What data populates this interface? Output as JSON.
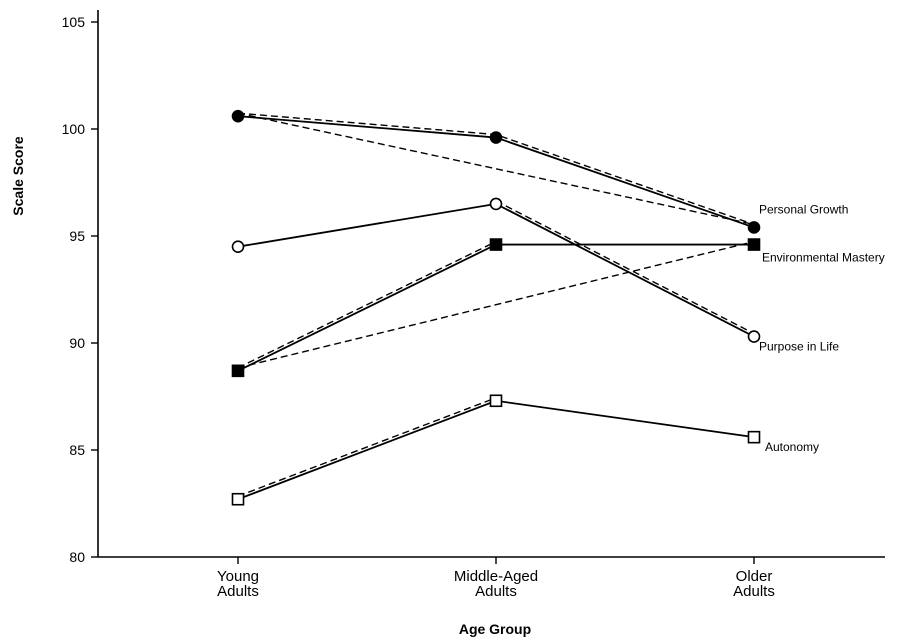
{
  "chart_data": {
    "type": "line",
    "title": "",
    "xlabel": "Age Group",
    "ylabel": "Scale Score",
    "categories": [
      [
        "Young",
        "Adults"
      ],
      [
        "Middle-Aged",
        "Adults"
      ],
      [
        "Older",
        "Adults"
      ]
    ],
    "ylim": [
      80,
      105
    ],
    "yticks": [
      80,
      85,
      90,
      95,
      100,
      105
    ],
    "grid": false,
    "legend": "inline labels at right end of each series",
    "series": [
      {
        "name": "Personal Growth",
        "marker": "filled-circle",
        "values": [
          100.6,
          99.6,
          95.4
        ]
      },
      {
        "name": "Environmental Mastery",
        "marker": "filled-square",
        "values": [
          88.7,
          94.6,
          94.6
        ]
      },
      {
        "name": "Purpose in Life",
        "marker": "open-circle",
        "values": [
          94.5,
          96.5,
          90.3
        ]
      },
      {
        "name": "Autonomy",
        "marker": "open-square",
        "values": [
          82.7,
          87.3,
          85.6
        ]
      }
    ],
    "dashed_comparisons": [
      {
        "series": "Personal Growth",
        "values": [
          100.6,
          99.6,
          95.4
        ]
      },
      {
        "series": "Personal Growth",
        "values": [
          100.6,
          null,
          95.4
        ]
      },
      {
        "series": "Environmental Mastery",
        "values": [
          88.7,
          94.6,
          null
        ]
      },
      {
        "series": "Environmental Mastery",
        "values": [
          88.7,
          null,
          94.6
        ]
      },
      {
        "series": "Purpose in Life",
        "values": [
          null,
          96.5,
          90.3
        ]
      },
      {
        "series": "Autonomy",
        "values": [
          82.7,
          87.3,
          null
        ]
      }
    ],
    "colors": {
      "ink": "#000000",
      "open_fill": "#ffffff"
    }
  }
}
